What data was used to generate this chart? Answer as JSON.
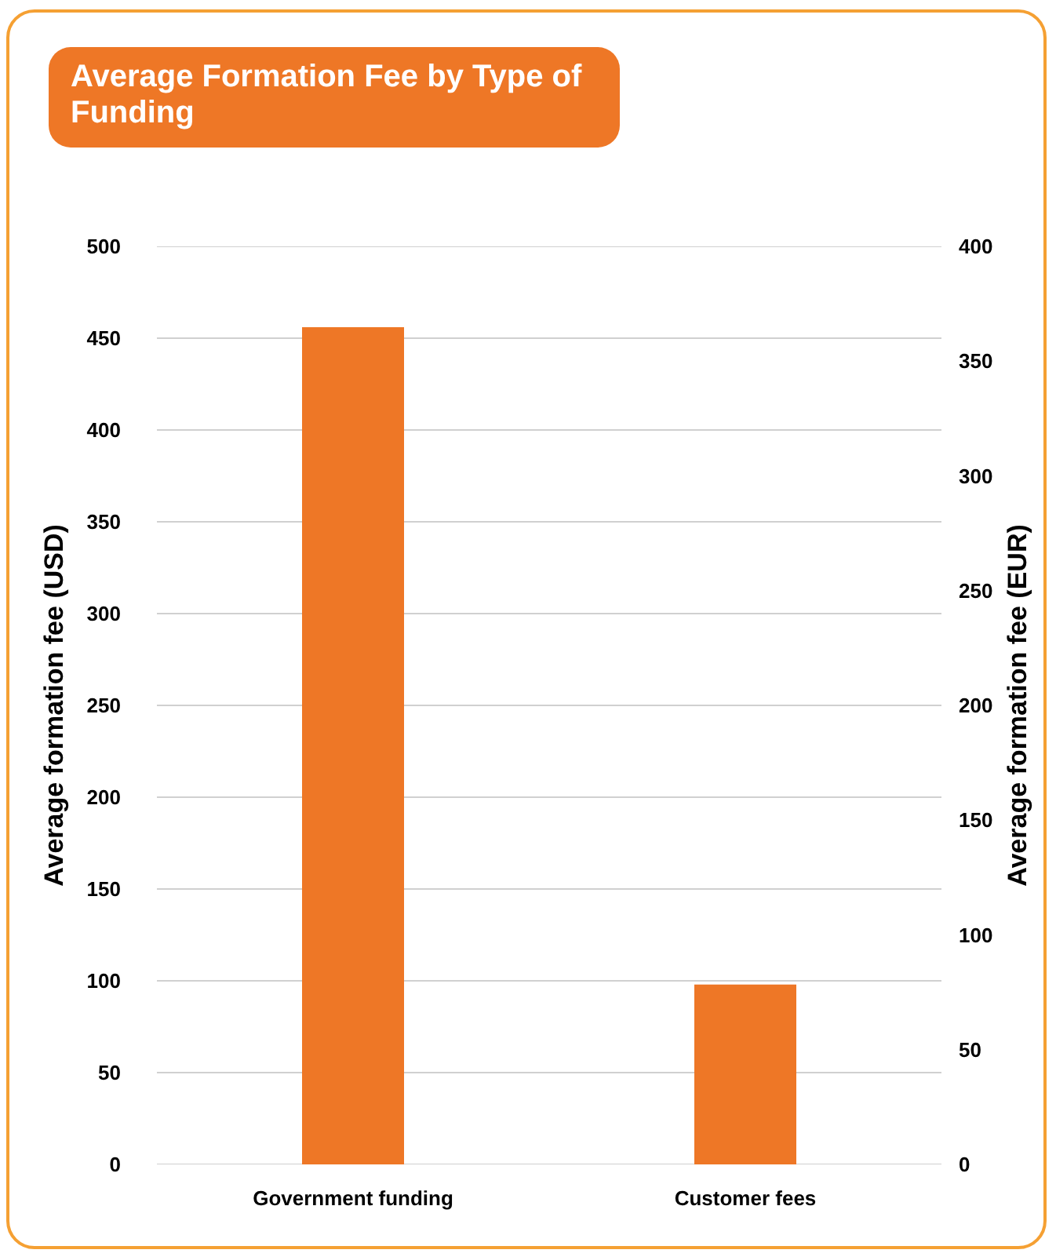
{
  "chart_data": {
    "type": "bar",
    "title": "Average Formation Fee by Type of Funding",
    "categories": [
      "Government funding",
      "Customer fees"
    ],
    "series": [
      {
        "color": "#ee7726",
        "values": [
          456,
          98
        ]
      }
    ],
    "ylabel": "Average formation fee (USD)",
    "y2label": "Average formation fee (EUR)",
    "ylim": [
      0,
      500
    ],
    "yticks": [
      0,
      50,
      100,
      150,
      200,
      250,
      300,
      350,
      400,
      450,
      500
    ],
    "y2lim": [
      0,
      400
    ],
    "y2ticks": [
      0,
      50,
      100,
      150,
      200,
      250,
      300,
      350,
      400
    ],
    "grid": "y"
  }
}
